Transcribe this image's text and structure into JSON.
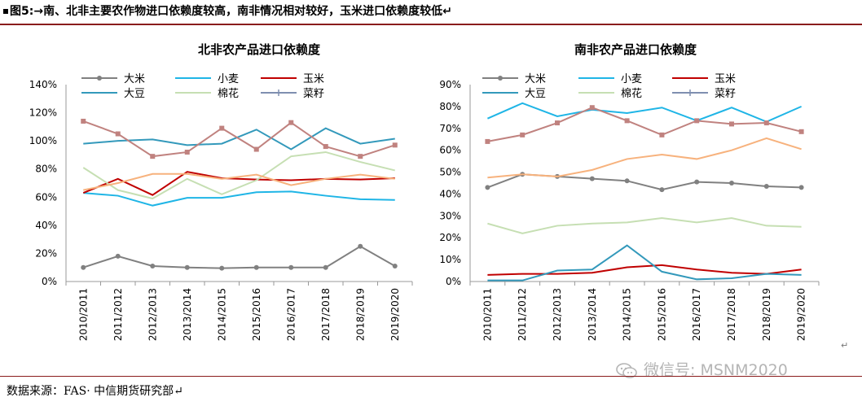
{
  "figure": {
    "title": "图5:→南、北非主要农作物进口依赖度较高，南非情况相对较好，玉米进口依赖度较低↵",
    "source": "数据来源：FAS· 中信期货研究部↵",
    "watermark": "微信号: MSNM2020",
    "end_mark": "↵"
  },
  "colors": {
    "rice": "#808080",
    "wheat": "#1fb5e6",
    "corn": "#c00000",
    "soybean": "#3399bb",
    "cotton": "#c6dfb3",
    "rapeseed": "#7f8fb0",
    "north_extra": "#c0827f",
    "north_extra2": "#f7b27d",
    "rule": "#8a1c1c"
  },
  "chart_data": [
    {
      "type": "line",
      "title": "北非农产品进口依赖度",
      "categories": [
        "2010/2011",
        "2011/2012",
        "2012/2013",
        "2013/2014",
        "2014/2015",
        "2015/2016",
        "2016/2017",
        "2017/2018",
        "2018/2019",
        "2019/2020"
      ],
      "ylim": [
        0,
        140
      ],
      "yticks": [
        "0%",
        "20%",
        "40%",
        "60%",
        "80%",
        "100%",
        "120%",
        "140%"
      ],
      "legend": [
        "大米",
        "小麦",
        "玉米",
        "大豆",
        "棉花",
        "菜籽"
      ],
      "series": [
        {
          "name": "大米",
          "color_key": "rice",
          "marker": "circle",
          "values": [
            10,
            18,
            11,
            10,
            9.5,
            10,
            10,
            10,
            25,
            11
          ]
        },
        {
          "name": "小麦",
          "color_key": "wheat",
          "marker": "none",
          "values": [
            63,
            61,
            54,
            59.5,
            59.5,
            63.5,
            64,
            61,
            58.5,
            58
          ]
        },
        {
          "name": "玉米",
          "color_key": "corn",
          "marker": "none",
          "values": [
            63,
            73,
            61.5,
            78,
            73.5,
            72.5,
            72,
            73,
            72.5,
            73.5
          ]
        },
        {
          "name": "大豆",
          "color_key": "soybean",
          "marker": "none",
          "values": [
            98,
            100,
            101,
            97,
            98,
            108,
            94,
            109,
            98,
            101.5
          ]
        },
        {
          "name": "棉花",
          "color_key": "cotton",
          "marker": "none",
          "values": [
            81,
            65,
            59,
            73,
            62,
            72,
            89,
            92,
            85,
            79
          ]
        },
        {
          "name": "菜籽",
          "color_key": "north_extra",
          "marker": "square",
          "values": [
            114,
            105,
            89,
            92,
            109,
            94,
            113,
            96,
            89,
            97
          ]
        },
        {
          "name": "",
          "color_key": "north_extra2",
          "marker": "none",
          "values": [
            65,
            70,
            76.5,
            76.5,
            73,
            76,
            68.5,
            73,
            76,
            73
          ]
        }
      ]
    },
    {
      "type": "line",
      "title": "南非农产品进口依赖度",
      "categories": [
        "2010/2011",
        "2011/2012",
        "2012/2013",
        "2013/2014",
        "2014/2015",
        "2015/2016",
        "2016/2017",
        "2017/2018",
        "2018/2019",
        "2019/2020"
      ],
      "ylim": [
        0,
        90
      ],
      "yticks": [
        "0%",
        "10%",
        "20%",
        "30%",
        "40%",
        "50%",
        "60%",
        "70%",
        "80%",
        "90%"
      ],
      "legend": [
        "大米",
        "小麦",
        "玉米",
        "大豆",
        "棉花",
        "菜籽"
      ],
      "series": [
        {
          "name": "大米",
          "color_key": "rice",
          "marker": "circle",
          "values": [
            43,
            49,
            48,
            47,
            46,
            42,
            45.5,
            45,
            43.5,
            43
          ]
        },
        {
          "name": "小麦",
          "color_key": "wheat",
          "marker": "none",
          "values": [
            74.5,
            81.5,
            75.5,
            78.5,
            77,
            79.5,
            73.5,
            79.5,
            73,
            80
          ]
        },
        {
          "name": "玉米",
          "color_key": "corn",
          "marker": "none",
          "values": [
            3,
            3.5,
            3.5,
            4,
            6.5,
            7.5,
            5.5,
            4,
            3.5,
            5.5
          ]
        },
        {
          "name": "大豆",
          "color_key": "soybean",
          "marker": "none",
          "values": [
            0.5,
            0.5,
            5,
            5.5,
            16.5,
            4.5,
            1,
            1.5,
            3.5,
            3
          ]
        },
        {
          "name": "棉花",
          "color_key": "cotton",
          "marker": "none",
          "values": [
            26.5,
            22,
            25.5,
            26.5,
            27,
            29,
            27,
            29,
            25.5,
            25
          ]
        },
        {
          "name": "菜籽",
          "color_key": "north_extra",
          "marker": "square",
          "values": [
            64,
            67,
            72.5,
            79.5,
            73.5,
            67,
            73.5,
            72,
            72.5,
            68.5
          ]
        },
        {
          "name": "",
          "color_key": "north_extra2",
          "marker": "none",
          "values": [
            47.5,
            49,
            48,
            51,
            56,
            58,
            56,
            60,
            65.5,
            60.5
          ]
        }
      ]
    }
  ]
}
